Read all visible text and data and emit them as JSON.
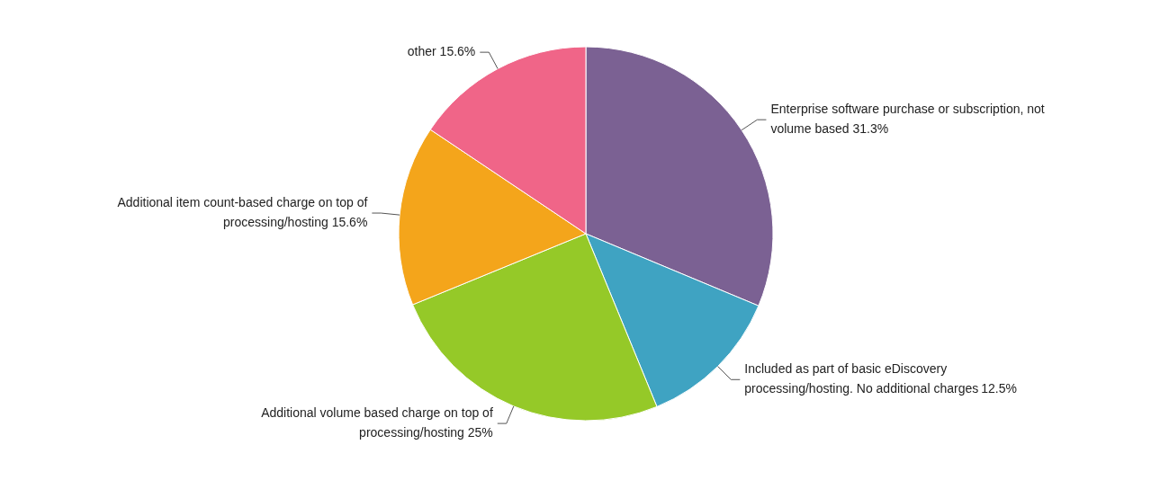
{
  "chart_data": {
    "type": "pie",
    "categories": [
      "Enterprise software purchase or subscription, not volume based",
      "Included as part of basic eDiscovery processing/hosting. No additional charges",
      "Additional volume based charge on top of processing/hosting",
      "Additional item count-based charge on top of processing/hosting",
      "other"
    ],
    "values": [
      31.3,
      12.5,
      25,
      15.6,
      15.6
    ],
    "colors": [
      "#7b6193",
      "#3fa3c2",
      "#95c928",
      "#f4a51b",
      "#f06588"
    ],
    "value_labels": [
      "31.3%",
      "12.5%",
      "25%",
      "15.6%",
      "15.6%"
    ]
  }
}
